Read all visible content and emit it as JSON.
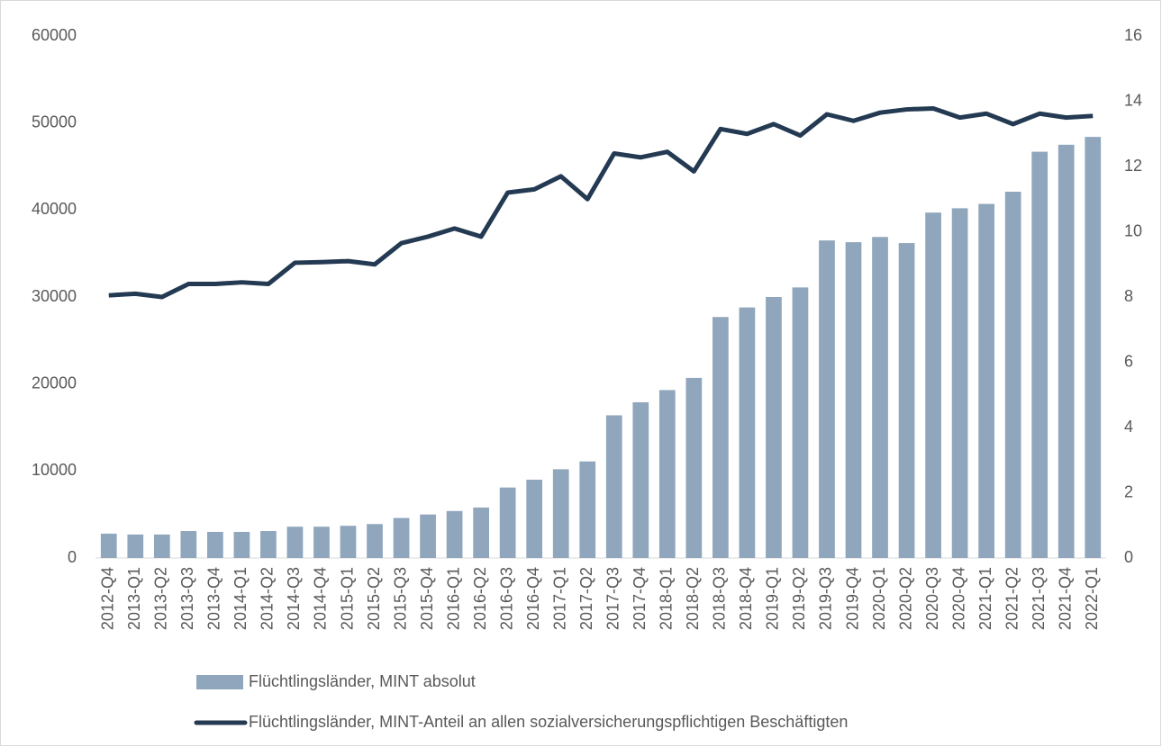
{
  "chart_data": {
    "type": "bar-line",
    "categories": [
      "2012-Q4",
      "2013-Q1",
      "2013-Q2",
      "2013-Q3",
      "2013-Q4",
      "2014-Q1",
      "2014-Q2",
      "2014-Q3",
      "2014-Q4",
      "2015-Q1",
      "2015-Q2",
      "2015-Q3",
      "2015-Q4",
      "2016-Q1",
      "2016-Q2",
      "2016-Q3",
      "2016-Q4",
      "2017-Q1",
      "2017-Q2",
      "2017-Q3",
      "2017-Q4",
      "2018-Q1",
      "2018-Q2",
      "2018-Q3",
      "2018-Q4",
      "2019-Q1",
      "2019-Q2",
      "2019-Q3",
      "2019-Q4",
      "2020-Q1",
      "2020-Q2",
      "2020-Q3",
      "2020-Q4",
      "2021-Q1",
      "2021-Q2",
      "2021-Q3",
      "2021-Q4",
      "2022-Q1"
    ],
    "series": [
      {
        "name": "Flüchtlingsländer, MINT absolut",
        "type": "bar",
        "color": "#8fa6bc",
        "axis": "y",
        "values": [
          2800,
          2700,
          2700,
          3100,
          3000,
          3000,
          3100,
          3600,
          3600,
          3700,
          3900,
          4600,
          5000,
          5400,
          5800,
          8100,
          9000,
          10200,
          11100,
          16400,
          17900,
          19300,
          20700,
          27700,
          28800,
          30000,
          31100,
          36500,
          36300,
          36900,
          36200,
          39700,
          40200,
          40700,
          42100,
          46700,
          47500,
          48400
        ]
      },
      {
        "name": "Flüchtlingsländer, MINT-Anteil an allen sozialversicherungspflichtigen Beschäftigten",
        "type": "line",
        "color": "#243a52",
        "axis": "y2",
        "values": [
          8.05,
          8.1,
          8.0,
          8.4,
          8.4,
          8.45,
          8.4,
          9.05,
          9.07,
          9.1,
          9.0,
          9.65,
          9.85,
          10.1,
          9.85,
          11.2,
          11.3,
          11.7,
          11.0,
          12.4,
          12.28,
          12.45,
          11.85,
          13.15,
          13.0,
          13.3,
          12.95,
          13.6,
          13.4,
          13.65,
          13.75,
          13.78,
          13.5,
          13.62,
          13.3,
          13.62,
          13.5,
          13.55
        ]
      }
    ],
    "ylim": [
      0,
      60000
    ],
    "yticks": [
      0,
      10000,
      20000,
      30000,
      40000,
      50000,
      60000
    ],
    "y2lim": [
      0,
      16
    ],
    "y2ticks": [
      0,
      2,
      4,
      6,
      8,
      10,
      12,
      14,
      16
    ],
    "grid": false,
    "legend": "bottom"
  }
}
